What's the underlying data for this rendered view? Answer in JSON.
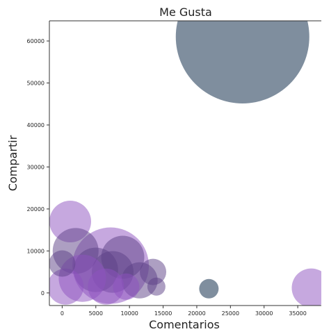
{
  "chart_data": {
    "type": "scatter",
    "title": "Me Gusta",
    "xlabel": "Comentarios",
    "ylabel": "Compartir",
    "xlim": [
      -1900,
      38500
    ],
    "ylim": [
      -3000,
      64800
    ],
    "x_ticks": [
      0,
      5000,
      10000,
      15000,
      20000,
      25000,
      30000,
      35000
    ],
    "y_ticks": [
      0,
      10000,
      20000,
      30000,
      40000,
      50000,
      60000
    ],
    "grid": false,
    "legend": "none",
    "colors": {
      "dark_bubble": "#54687e",
      "purple_bubble": "#8d52bf",
      "dark_purple_bubble": "#5b3f86",
      "axis": "#333333"
    },
    "points": [
      {
        "x": 26800,
        "y": 61000,
        "size": 96,
        "color": "dark_bubble"
      },
      {
        "x": 21800,
        "y": 1000,
        "size": 14,
        "color": "dark_bubble"
      },
      {
        "x": 37000,
        "y": 1200,
        "size": 28,
        "color": "purple_bubble"
      },
      {
        "x": 7200,
        "y": 6500,
        "size": 55,
        "color": "purple_bubble"
      },
      {
        "x": 1200,
        "y": 17000,
        "size": 30,
        "color": "purple_bubble"
      },
      {
        "x": 9000,
        "y": 8500,
        "size": 31,
        "color": "dark_purple_bubble"
      },
      {
        "x": 2000,
        "y": 10000,
        "size": 33,
        "color": "dark_purple_bubble"
      },
      {
        "x": 5000,
        "y": 5500,
        "size": 32,
        "color": "dark_purple_bubble"
      },
      {
        "x": 13500,
        "y": 5000,
        "size": 19,
        "color": "dark_purple_bubble"
      },
      {
        "x": 7500,
        "y": 5000,
        "size": 30,
        "color": "dark_purple_bubble"
      },
      {
        "x": 11500,
        "y": 3000,
        "size": 26,
        "color": "dark_purple_bubble"
      },
      {
        "x": 14000,
        "y": 1500,
        "size": 13,
        "color": "dark_purple_bubble"
      },
      {
        "x": 3000,
        "y": 3500,
        "size": 34,
        "color": "purple_bubble"
      },
      {
        "x": 500,
        "y": 1500,
        "size": 26,
        "color": "purple_bubble"
      },
      {
        "x": 6500,
        "y": 1500,
        "size": 26,
        "color": "purple_bubble"
      },
      {
        "x": 9500,
        "y": 1500,
        "size": 19,
        "color": "purple_bubble"
      },
      {
        "x": 0,
        "y": 7000,
        "size": 19,
        "color": "dark_purple_bubble"
      }
    ]
  }
}
